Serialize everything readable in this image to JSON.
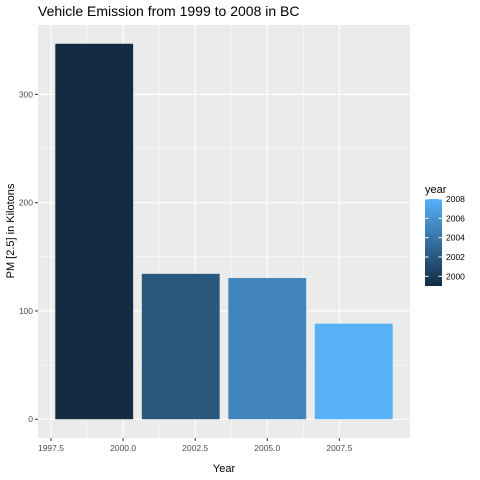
{
  "chart_data": {
    "type": "bar",
    "title": "Vehicle Emission from 1999 to 2008 in BC",
    "xlabel": "Year",
    "ylabel": "PM [2.5] in Kilotons",
    "x": [
      1999,
      2002,
      2005,
      2008
    ],
    "values": [
      346.8,
      134.3,
      130.4,
      88.3
    ],
    "xlim": [
      1997.05,
      2009.95
    ],
    "ylim": [
      -17.34,
      364.14
    ],
    "x_ticks": [
      1997.5,
      2000.0,
      2002.5,
      2005.0,
      2007.5
    ],
    "x_tick_labels": [
      "1997.5",
      "2000.0",
      "2002.5",
      "2005.0",
      "2007.5"
    ],
    "y_ticks": [
      0,
      100,
      200,
      300
    ],
    "y_tick_labels": [
      "0",
      "100",
      "200",
      "300"
    ],
    "bar_width_years": 2.7,
    "grid": true,
    "panel_background": "#ebebeb",
    "grid_color": "#ffffff",
    "color_scale": {
      "low_color": "#132b43",
      "high_color": "#56b1f7",
      "range": [
        1999,
        2008
      ]
    },
    "legend": {
      "title": "year",
      "placement": "right",
      "breaks": [
        2000,
        2002,
        2004,
        2006,
        2008
      ],
      "labels": [
        "2000",
        "2002",
        "2004",
        "2006",
        "2008"
      ]
    }
  }
}
